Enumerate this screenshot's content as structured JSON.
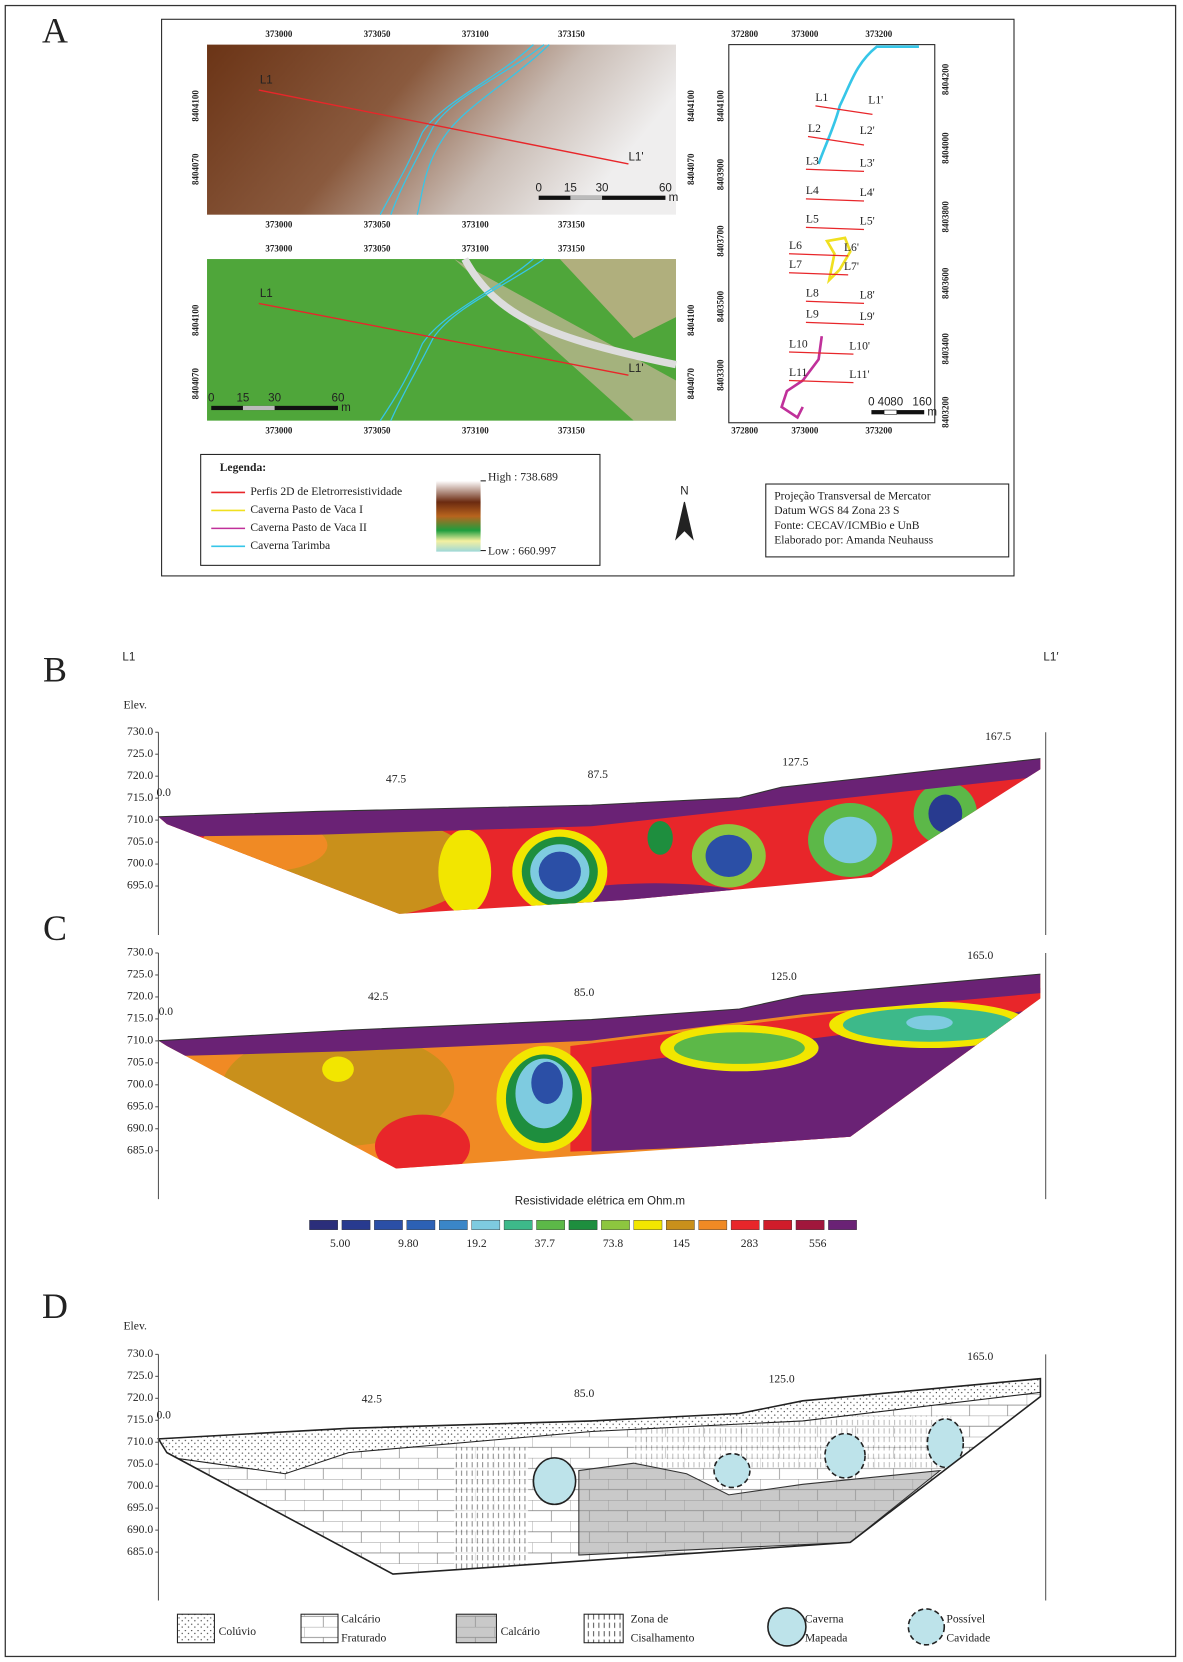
{
  "panel_labels": [
    "A",
    "B",
    "C",
    "D"
  ],
  "map_aerial": {
    "x_ticks": [
      "373000",
      "373050",
      "373100",
      "373150"
    ],
    "y_ticks": [
      "8404100",
      "8404070"
    ],
    "profile_start": "L1",
    "profile_end": "L1'",
    "scale_bar": [
      "0",
      "15",
      "30",
      "60"
    ],
    "scale_unit": "m"
  },
  "map_ortho": {
    "x_ticks": [
      "373000",
      "373050",
      "373100",
      "373150"
    ],
    "y_ticks": [
      "8404100",
      "8404070"
    ],
    "profile_start": "L1",
    "profile_end": "L1'",
    "scale_bar": [
      "0",
      "15",
      "30",
      "60"
    ],
    "scale_unit": "m"
  },
  "map_overview": {
    "x_ticks": [
      "372800",
      "373000",
      "373200"
    ],
    "y_ticks_left": [
      "8404100",
      "8403900",
      "8403700",
      "8403500",
      "8403300"
    ],
    "y_ticks_right": [
      "8404200",
      "8404000",
      "8403800",
      "8403600",
      "8403400",
      "8403200"
    ],
    "profiles": [
      [
        "L1",
        "L1'"
      ],
      [
        "L2",
        "L2'"
      ],
      [
        "L3",
        "L3'"
      ],
      [
        "L4",
        "L4'"
      ],
      [
        "L5",
        "L5'"
      ],
      [
        "L6",
        "L6'"
      ],
      [
        "L7",
        "L7'"
      ],
      [
        "L8",
        "L8'"
      ],
      [
        "L9",
        "L9'"
      ],
      [
        "L10",
        "L10'"
      ],
      [
        "L11",
        "L11'"
      ]
    ],
    "scale_bar": [
      "0",
      "40",
      "80",
      "160"
    ],
    "scale_unit": "m"
  },
  "legend": {
    "title": "Legenda:",
    "items": [
      "Perfis 2D de Eletrorresistividade",
      "Caverna Pasto de Vaca I",
      "Caverna Pasto de Vaca II",
      "Caverna Tarimba"
    ],
    "high": "High : 738.689",
    "low": "Low : 660.997"
  },
  "north": "N",
  "info": [
    "Projeção Transversal de Mercator",
    "Datum WGS 84 Zona 23 S",
    "Fonte: CECAV/ICMBio e UnB",
    "Elaborado por: Amanda Neuhauss"
  ],
  "profile_b": {
    "start": "L1",
    "end": "L1′",
    "y_title": "Elev.",
    "y_ticks": [
      "730.0",
      "725.0",
      "720.0",
      "715.0",
      "710.0",
      "705.0",
      "700.0",
      "695.0"
    ],
    "distance_labels": [
      "0.0",
      "47.5",
      "87.5",
      "127.5",
      "167.5"
    ]
  },
  "profile_c": {
    "y_ticks": [
      "730.0",
      "725.0",
      "720.0",
      "715.0",
      "710.0",
      "705.0",
      "700.0",
      "695.0",
      "690.0",
      "685.0"
    ],
    "distance_labels": [
      "0.0",
      "42.5",
      "85.0",
      "125.0",
      "165.0"
    ]
  },
  "resistivity_scale": {
    "title": "Resistividade elétrica em Ohm.m",
    "labels": [
      "5.00",
      "9.80",
      "19.2",
      "37.7",
      "73.8",
      "145",
      "283",
      "556"
    ]
  },
  "profile_d": {
    "y_title": "Elev.",
    "y_ticks": [
      "730.0",
      "725.0",
      "720.0",
      "715.0",
      "710.0",
      "705.0",
      "700.0",
      "695.0",
      "690.0",
      "685.0"
    ],
    "distance_labels": [
      "0.0",
      "42.5",
      "85.0",
      "125.0",
      "165.0"
    ]
  },
  "geology_legend": [
    [
      "Colúvio"
    ],
    [
      "Calcário",
      "Fraturado"
    ],
    [
      "Calcário"
    ],
    [
      "Zona de",
      "Cisalhamento"
    ],
    [
      "Caverna",
      "Mapeada"
    ],
    [
      "Possível",
      "Cavidade"
    ]
  ]
}
